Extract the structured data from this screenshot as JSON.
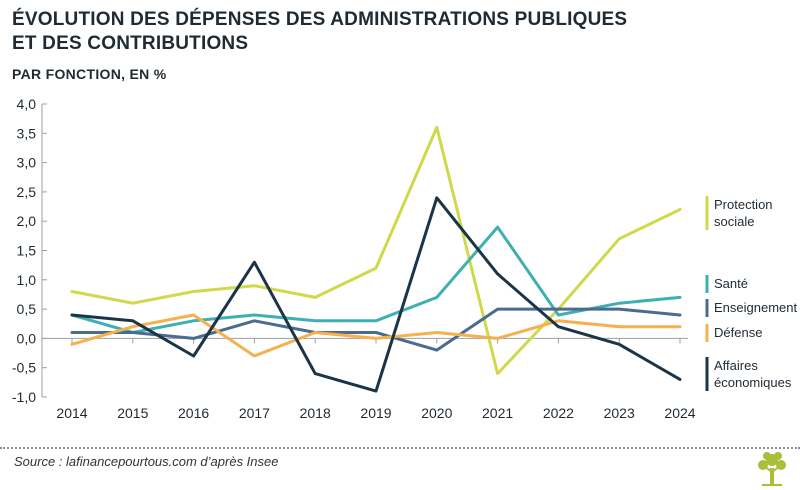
{
  "header": {
    "title": "Évolution des dépenses des administrations publiques et des contributions",
    "subtitle": "PAR FONCTION, EN  %"
  },
  "footer": {
    "source": "Source : lafinancepourtous.com d’après Insee",
    "logo_icon": "tree-logo-icon"
  },
  "chart_data": {
    "type": "line",
    "x": [
      2014,
      2015,
      2016,
      2017,
      2018,
      2019,
      2020,
      2021,
      2022,
      2023,
      2024
    ],
    "ylim": [
      -1.0,
      4.0
    ],
    "yticks": [
      "-1,0",
      "-0,5",
      "0,0",
      "0,5",
      "1,0",
      "1,5",
      "2,0",
      "2,5",
      "3,0",
      "3,5",
      "4,0"
    ],
    "ytick_values": [
      -1.0,
      -0.5,
      0,
      0.5,
      1.0,
      1.5,
      2.0,
      2.5,
      3.0,
      3.5,
      4.0
    ],
    "legend_position": "right",
    "series": [
      {
        "name": "Protection sociale",
        "legend_lines": [
          "Protection",
          "sociale"
        ],
        "color": "#cfd94a",
        "values": [
          0.8,
          0.6,
          0.8,
          0.9,
          0.7,
          1.2,
          3.6,
          -0.6,
          0.5,
          1.7,
          2.2
        ]
      },
      {
        "name": "Santé",
        "legend_lines": [
          "Santé"
        ],
        "color": "#3fb0b2",
        "values": [
          0.4,
          0.1,
          0.3,
          0.4,
          0.3,
          0.3,
          0.7,
          1.9,
          0.4,
          0.6,
          0.7
        ]
      },
      {
        "name": "Enseignement",
        "legend_lines": [
          "Enseignement"
        ],
        "color": "#4a6b8f",
        "values": [
          0.1,
          0.1,
          0.0,
          0.3,
          0.1,
          0.1,
          -0.2,
          0.5,
          0.5,
          0.5,
          0.4
        ]
      },
      {
        "name": "Défense",
        "legend_lines": [
          "Défense"
        ],
        "color": "#f6b04e",
        "values": [
          -0.1,
          0.2,
          0.4,
          -0.3,
          0.1,
          0.0,
          0.1,
          0.0,
          0.3,
          0.2,
          0.2
        ]
      },
      {
        "name": "Affaires économiques",
        "legend_lines": [
          "Affaires",
          "économiques"
        ],
        "color": "#1c3448",
        "values": [
          0.4,
          0.3,
          -0.3,
          1.3,
          -0.6,
          -0.9,
          2.4,
          1.1,
          0.2,
          -0.1,
          -0.7
        ]
      }
    ]
  }
}
